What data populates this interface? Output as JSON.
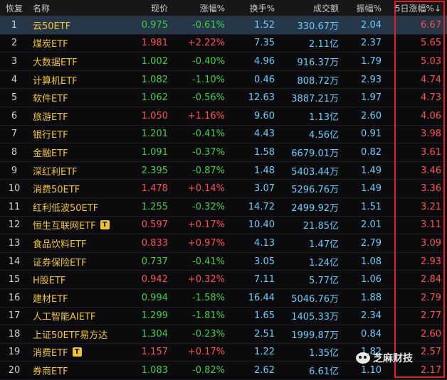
{
  "header": {
    "idx": "恢复",
    "name": "名称",
    "price": "现价",
    "chg": "涨幅%",
    "turnover": "换手%",
    "amount": "成交额",
    "amplitude": "振幅%",
    "chg5d": "5日涨幅%↓"
  },
  "rows": [
    {
      "idx": "1",
      "name": "云50ETF",
      "price": "0.975",
      "chg": "-0.61%",
      "turnover": "1.52",
      "amount": "330.67万",
      "amplitude": "2.04",
      "chg5d": "6.67",
      "dir": "down",
      "tag": ""
    },
    {
      "idx": "2",
      "name": "煤炭ETF",
      "price": "1.981",
      "chg": "+2.22%",
      "turnover": "7.35",
      "amount": "2.11亿",
      "amplitude": "2.37",
      "chg5d": "5.65",
      "dir": "up",
      "tag": ""
    },
    {
      "idx": "3",
      "name": "大数据ETF",
      "price": "1.002",
      "chg": "-0.40%",
      "turnover": "4.96",
      "amount": "916.37万",
      "amplitude": "1.79",
      "chg5d": "5.03",
      "dir": "down",
      "tag": ""
    },
    {
      "idx": "4",
      "name": "计算机ETF",
      "price": "1.082",
      "chg": "-1.10%",
      "turnover": "0.46",
      "amount": "808.72万",
      "amplitude": "2.93",
      "chg5d": "4.74",
      "dir": "down",
      "tag": ""
    },
    {
      "idx": "5",
      "name": "软件ETF",
      "price": "1.062",
      "chg": "-0.56%",
      "turnover": "12.63",
      "amount": "3887.21万",
      "amplitude": "1.97",
      "chg5d": "4.73",
      "dir": "down",
      "tag": ""
    },
    {
      "idx": "6",
      "name": "旅游ETF",
      "price": "1.050",
      "chg": "+1.16%",
      "turnover": "9.60",
      "amount": "1.13亿",
      "amplitude": "2.60",
      "chg5d": "4.06",
      "dir": "up",
      "tag": ""
    },
    {
      "idx": "7",
      "name": "银行ETF",
      "price": "1.201",
      "chg": "-0.41%",
      "turnover": "4.43",
      "amount": "4.56亿",
      "amplitude": "0.91",
      "chg5d": "3.98",
      "dir": "down",
      "tag": ""
    },
    {
      "idx": "8",
      "name": "金融ETF",
      "price": "1.091",
      "chg": "-0.37%",
      "turnover": "1.58",
      "amount": "6679.01万",
      "amplitude": "0.82",
      "chg5d": "3.61",
      "dir": "down",
      "tag": ""
    },
    {
      "idx": "9",
      "name": "深红利ETF",
      "price": "2.395",
      "chg": "-0.87%",
      "turnover": "1.48",
      "amount": "5403.44万",
      "amplitude": "1.49",
      "chg5d": "3.46",
      "dir": "down",
      "tag": ""
    },
    {
      "idx": "10",
      "name": "消费50ETF",
      "price": "1.478",
      "chg": "+0.14%",
      "turnover": "3.07",
      "amount": "5296.76万",
      "amplitude": "1.49",
      "chg5d": "3.36",
      "dir": "up",
      "tag": ""
    },
    {
      "idx": "11",
      "name": "红利低波50ETF",
      "price": "1.255",
      "chg": "-0.32%",
      "turnover": "14.72",
      "amount": "2499.92万",
      "amplitude": "1.51",
      "chg5d": "3.21",
      "dir": "down",
      "tag": ""
    },
    {
      "idx": "12",
      "name": "恒生互联网ETF",
      "price": "0.597",
      "chg": "+0.17%",
      "turnover": "10.40",
      "amount": "21.85亿",
      "amplitude": "2.01",
      "chg5d": "3.11",
      "dir": "up",
      "tag": "T"
    },
    {
      "idx": "13",
      "name": "食品饮料ETF",
      "price": "0.833",
      "chg": "+0.97%",
      "turnover": "4.13",
      "amount": "1.47亿",
      "amplitude": "2.79",
      "chg5d": "3.09",
      "dir": "up",
      "tag": ""
    },
    {
      "idx": "14",
      "name": "证券保险ETF",
      "price": "0.737",
      "chg": "-0.41%",
      "turnover": "3.05",
      "amount": "1.24亿",
      "amplitude": "1.08",
      "chg5d": "2.93",
      "dir": "down",
      "tag": ""
    },
    {
      "idx": "15",
      "name": "H股ETF",
      "price": "0.942",
      "chg": "+0.32%",
      "turnover": "7.11",
      "amount": "5.77亿",
      "amplitude": "1.06",
      "chg5d": "2.84",
      "dir": "up",
      "tag": ""
    },
    {
      "idx": "16",
      "name": "建材ETF",
      "price": "0.994",
      "chg": "-1.58%",
      "turnover": "16.44",
      "amount": "5046.76万",
      "amplitude": "1.88",
      "chg5d": "2.79",
      "dir": "down",
      "tag": ""
    },
    {
      "idx": "17",
      "name": "人工智能AIETF",
      "price": "1.299",
      "chg": "-1.81%",
      "turnover": "1.65",
      "amount": "1405.33万",
      "amplitude": "2.34",
      "chg5d": "2.77",
      "dir": "down",
      "tag": ""
    },
    {
      "idx": "18",
      "name": "上证50ETF易方达",
      "price": "1.304",
      "chg": "-0.23%",
      "turnover": "2.51",
      "amount": "1999.87万",
      "amplitude": "0.84",
      "chg5d": "2.60",
      "dir": "down",
      "tag": ""
    },
    {
      "idx": "19",
      "name": "消费ETF",
      "price": "1.157",
      "chg": "+0.17%",
      "turnover": "1.22",
      "amount": "1.35亿",
      "amplitude": "1.82",
      "chg5d": "2.57",
      "dir": "up",
      "tag": "T"
    },
    {
      "idx": "20",
      "name": "券商ETF",
      "price": "1.083",
      "chg": "-0.82%",
      "turnover": "2.62",
      "amount": "6.61亿",
      "amplitude": "1.10",
      "chg5d": "2.17",
      "dir": "down",
      "tag": ""
    }
  ],
  "watermark": "芝麻财技",
  "colors": {
    "up": "#ff4d4d",
    "down": "#3ccf3c",
    "name": "#f0c330",
    "neutral": "#66ccff",
    "highlight_box": "#e02020",
    "selected_row": "#26374a"
  },
  "selected_row": 1
}
